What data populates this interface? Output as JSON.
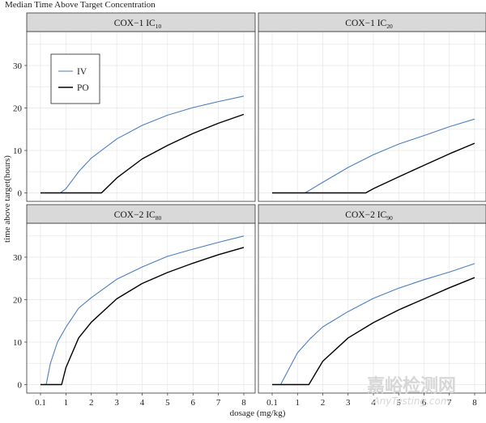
{
  "chart_data": {
    "type": "line",
    "title": "Median Time Above Target Concentration",
    "xlabel": "dosage (mg/kg)",
    "ylabel": "time above target(hours)",
    "x_ticks": [
      "0.1",
      "1",
      "2",
      "3",
      "4",
      "5",
      "6",
      "7",
      "8"
    ],
    "y_ticks": [
      0,
      10,
      20,
      30
    ],
    "ylim": [
      -2,
      38
    ],
    "legend": {
      "placement": "top-left (first panel)",
      "entries": [
        "IV",
        "PO"
      ]
    },
    "colors": {
      "IV": "#4a7ec2",
      "PO": "#000000"
    },
    "panels": [
      {
        "strip_main": "COX−1 IC",
        "strip_sub": "10",
        "series": [
          {
            "name": "IV",
            "x": [
              0.1,
              0.5,
              0.8,
              1,
              1.5,
              2,
              3,
              4,
              5,
              6,
              7,
              8
            ],
            "y": [
              0,
              0,
              0,
              1,
              5,
              8.2,
              12.7,
              15.9,
              18.3,
              20.1,
              21.5,
              22.8
            ]
          },
          {
            "name": "PO",
            "x": [
              0.1,
              1,
              2,
              2.4,
              3,
              4,
              5,
              6,
              7,
              8
            ],
            "y": [
              0,
              0,
              0,
              0,
              3.5,
              8,
              11.2,
              14,
              16.4,
              18.5
            ]
          }
        ]
      },
      {
        "strip_main": "COX−1 IC",
        "strip_sub": "20",
        "series": [
          {
            "name": "IV",
            "x": [
              0.1,
              1,
              1.3,
              2,
              3,
              4,
              5,
              6,
              7,
              8
            ],
            "y": [
              0,
              0,
              0,
              2.5,
              6,
              9,
              11.5,
              13.5,
              15.6,
              17.4
            ]
          },
          {
            "name": "PO",
            "x": [
              0.1,
              2,
              3,
              3.7,
              4,
              5,
              6,
              7,
              8
            ],
            "y": [
              0,
              0,
              0,
              0,
              1,
              3.8,
              6.5,
              9.2,
              11.7
            ]
          }
        ]
      },
      {
        "strip_main": "COX−2 IC",
        "strip_sub": "80",
        "series": [
          {
            "name": "IV",
            "x": [
              0.1,
              0.3,
              0.45,
              0.7,
              1,
              1.5,
              2,
              3,
              4,
              5,
              6,
              7,
              8
            ],
            "y": [
              0,
              0,
              5,
              10,
              13.5,
              18,
              20.5,
              24.8,
              27.7,
              30.2,
              31.9,
              33.5,
              35
            ]
          },
          {
            "name": "PO",
            "x": [
              0.1,
              0.5,
              0.85,
              1,
              1.5,
              2,
              3,
              4,
              5,
              6,
              7,
              8
            ],
            "y": [
              0,
              0,
              0,
              4,
              11,
              14.7,
              20.2,
              23.8,
              26.4,
              28.6,
              30.6,
              32.3
            ]
          }
        ]
      },
      {
        "strip_main": "COX−2 IC",
        "strip_sub": "90",
        "series": [
          {
            "name": "IV",
            "x": [
              0.1,
              0.4,
              0.6,
              1,
              1.5,
              2,
              3,
              4,
              5,
              6,
              7,
              8
            ],
            "y": [
              0,
              0,
              2.5,
              7.5,
              10.8,
              13.6,
              17.2,
              20.3,
              22.7,
              24.7,
              26.5,
              28.5
            ]
          },
          {
            "name": "PO",
            "x": [
              0.1,
              1,
              1.45,
              2,
              3,
              4,
              5,
              6,
              7,
              8
            ],
            "y": [
              0,
              0,
              0,
              5.5,
              11,
              14.6,
              17.6,
              20.2,
              22.8,
              25.2
            ]
          }
        ]
      }
    ]
  },
  "watermark": {
    "cn": "嘉峪检测网",
    "en": "AnyTesting.com"
  }
}
